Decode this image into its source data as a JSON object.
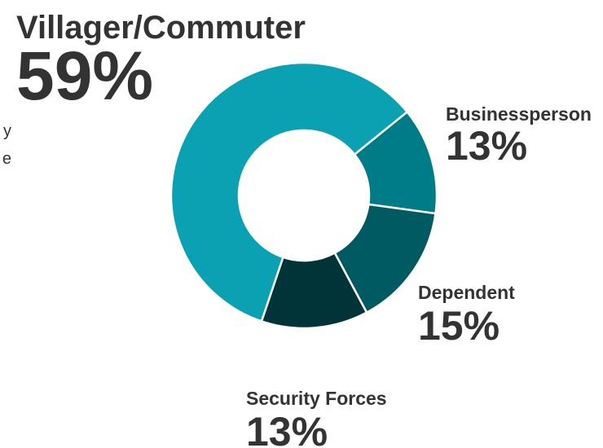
{
  "chart_data": {
    "type": "donut",
    "categories": [
      "Villager/Commuter",
      "Businessperson",
      "Dependent",
      "Security Forces"
    ],
    "values": [
      59,
      13,
      15,
      13
    ],
    "value_labels": [
      "59%",
      "13%",
      "15%",
      "13%"
    ],
    "colors": [
      "#0aa2b2",
      "#007c89",
      "#005a62",
      "#003439"
    ],
    "annotations": [
      "y",
      "e"
    ]
  }
}
